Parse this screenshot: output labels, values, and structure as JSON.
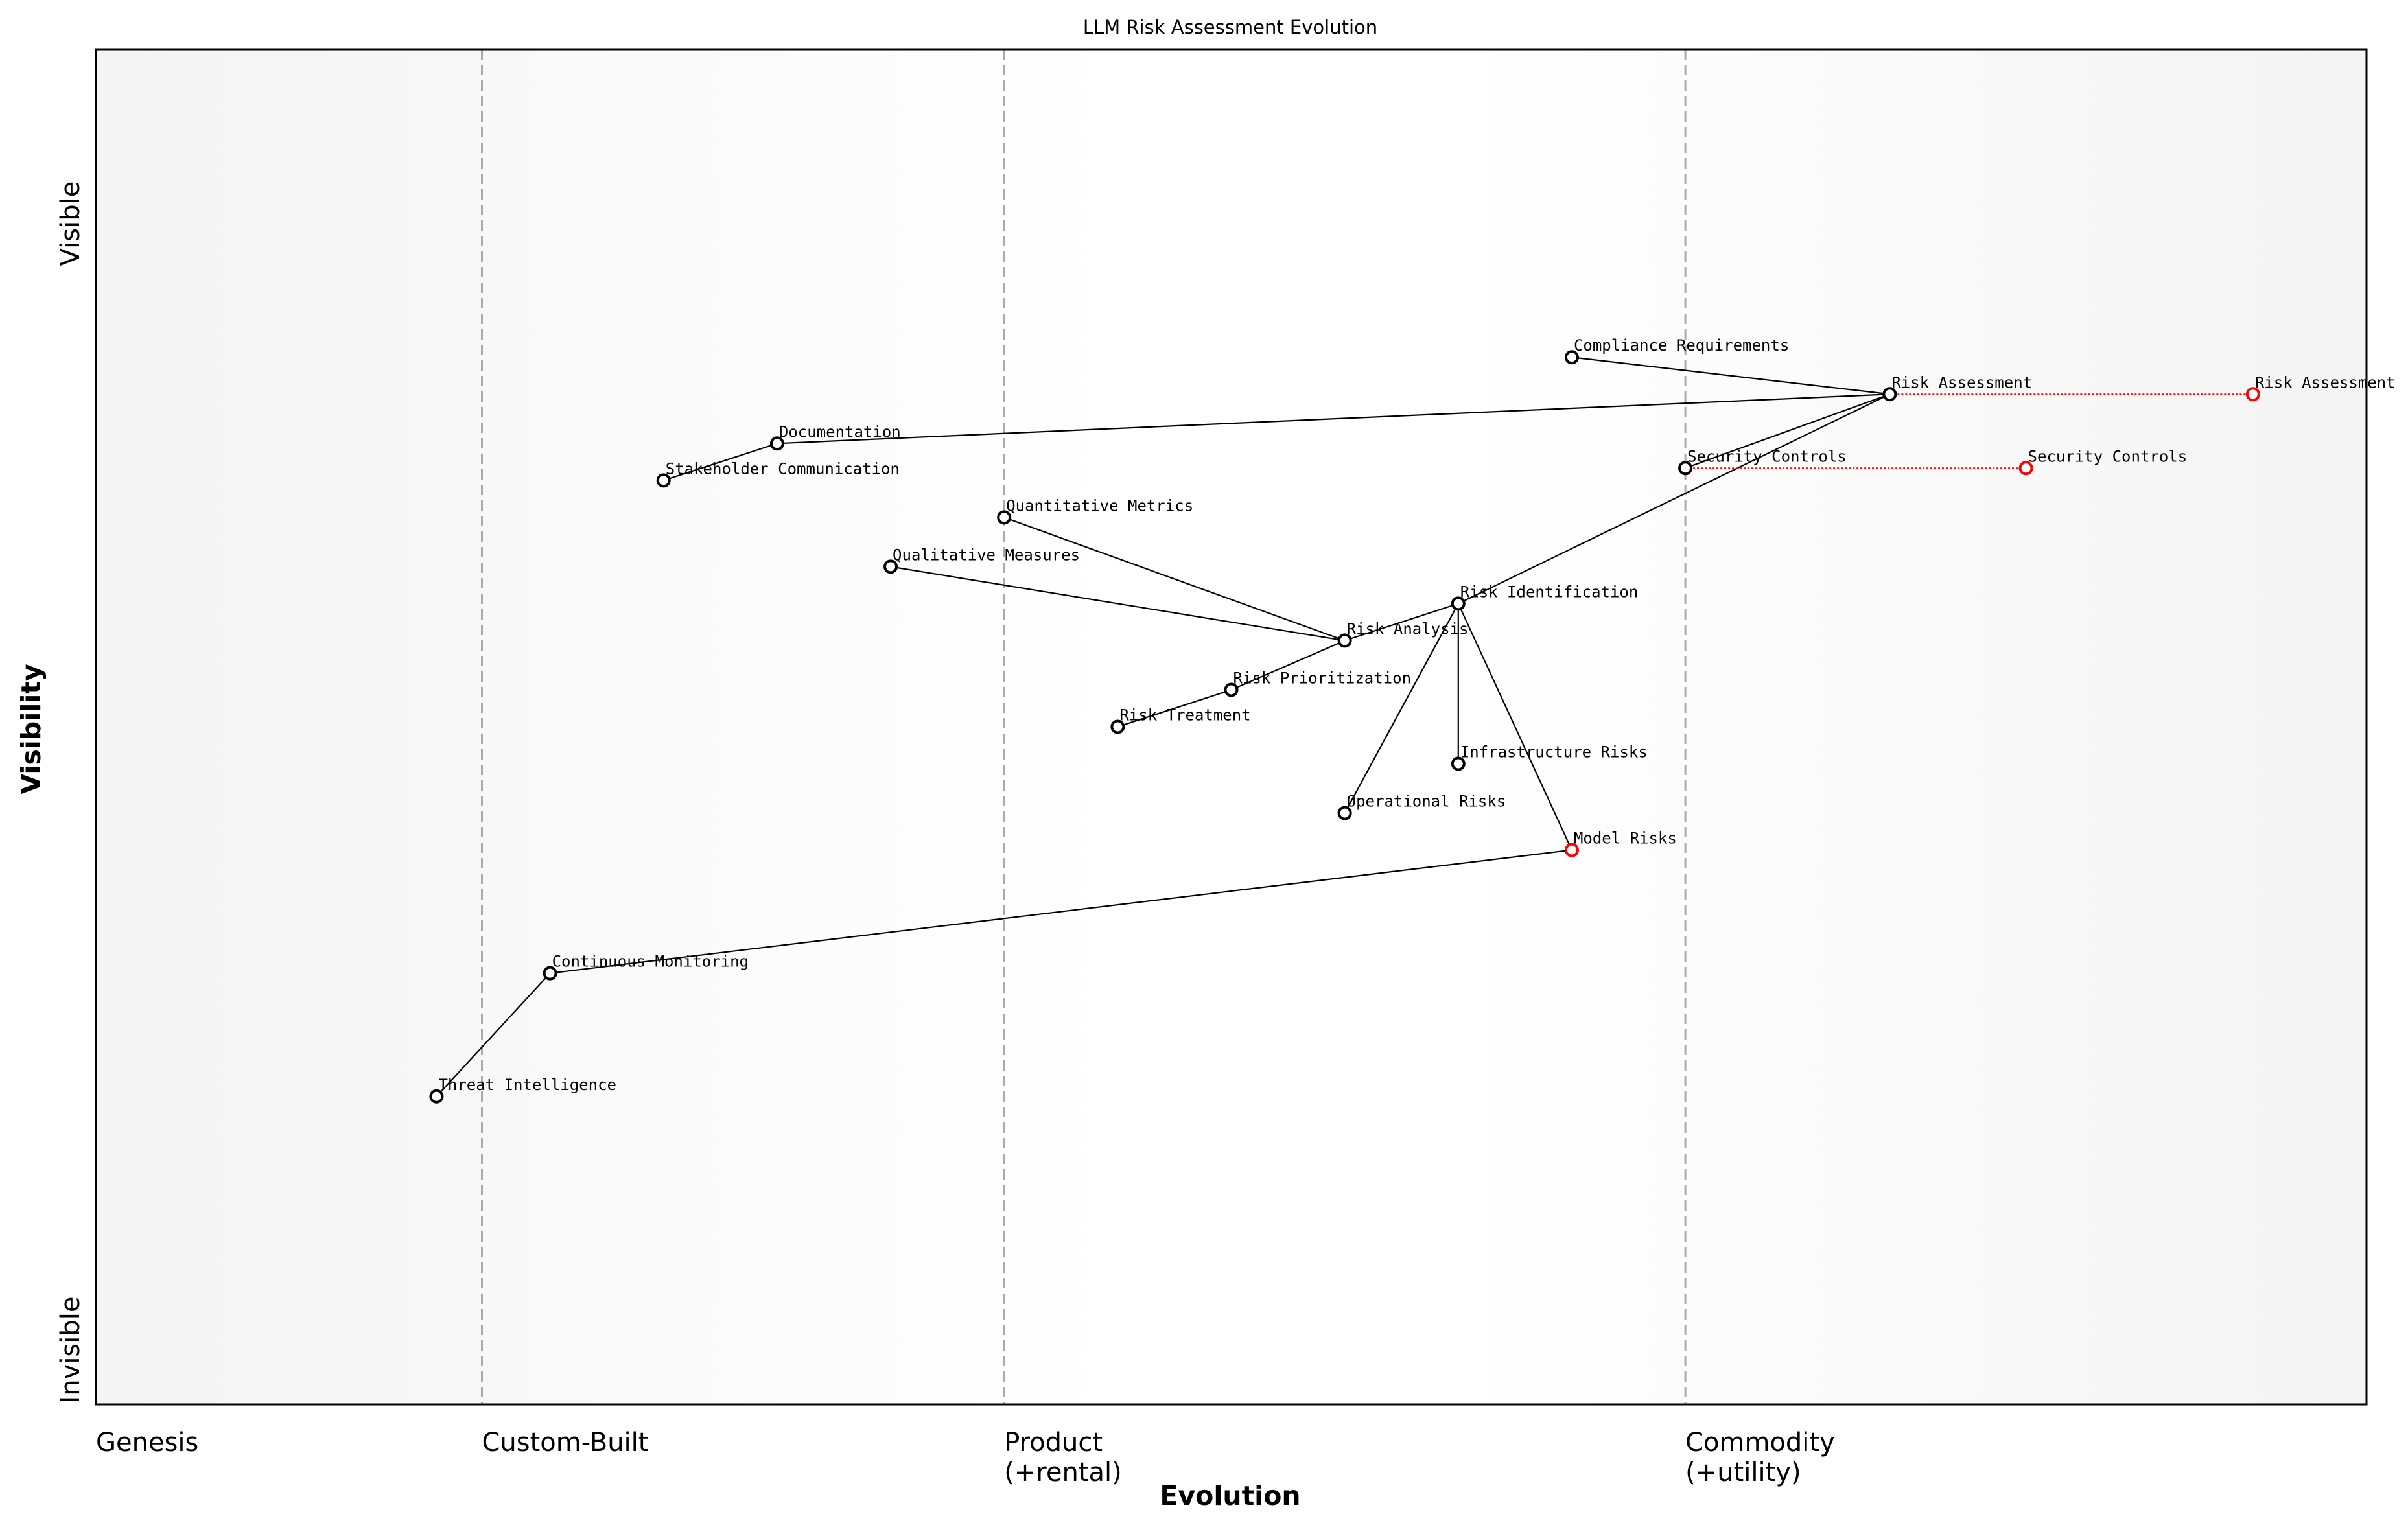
{
  "chart_data": {
    "type": "wardley-map",
    "title": "LLM Risk Assessment Evolution",
    "xlabel": "Evolution",
    "ylabel": "Visibility",
    "xlim": [
      0,
      1
    ],
    "ylim": [
      0,
      1.1
    ],
    "stages": [
      {
        "label": "Genesis",
        "x": 0
      },
      {
        "label": "Custom-Built",
        "x": 0.17
      },
      {
        "label": "Product\n(+rental)",
        "x": 0.4
      },
      {
        "label": "Commodity\n(+utility)",
        "x": 0.7
      }
    ],
    "y_labels": {
      "top": "Visible",
      "bottom": "Invisible"
    },
    "components": [
      {
        "name": "Compliance Requirements",
        "evolution": 0.65,
        "visibility": 0.85
      },
      {
        "name": "Risk Assessment",
        "evolution": 0.79,
        "visibility": 0.82
      },
      {
        "name": "Documentation",
        "evolution": 0.3,
        "visibility": 0.78
      },
      {
        "name": "Stakeholder Communication",
        "evolution": 0.25,
        "visibility": 0.75
      },
      {
        "name": "Security Controls",
        "evolution": 0.7,
        "visibility": 0.76
      },
      {
        "name": "Quantitative Metrics",
        "evolution": 0.4,
        "visibility": 0.72
      },
      {
        "name": "Qualitative Measures",
        "evolution": 0.35,
        "visibility": 0.68
      },
      {
        "name": "Risk Identification",
        "evolution": 0.6,
        "visibility": 0.65
      },
      {
        "name": "Risk Analysis",
        "evolution": 0.55,
        "visibility": 0.62
      },
      {
        "name": "Risk Prioritization",
        "evolution": 0.5,
        "visibility": 0.58
      },
      {
        "name": "Risk Treatment",
        "evolution": 0.45,
        "visibility": 0.55
      },
      {
        "name": "Infrastructure Risks",
        "evolution": 0.6,
        "visibility": 0.52
      },
      {
        "name": "Operational Risks",
        "evolution": 0.55,
        "visibility": 0.48
      },
      {
        "name": "Model Risks",
        "evolution": 0.65,
        "visibility": 0.45,
        "color": "#ff0000"
      },
      {
        "name": "Continuous Monitoring",
        "evolution": 0.2,
        "visibility": 0.35
      },
      {
        "name": "Threat Intelligence",
        "evolution": 0.15,
        "visibility": 0.25
      }
    ],
    "links": [
      [
        "Compliance Requirements",
        "Risk Assessment"
      ],
      [
        "Risk Assessment",
        "Documentation"
      ],
      [
        "Documentation",
        "Stakeholder Communication"
      ],
      [
        "Risk Assessment",
        "Security Controls"
      ],
      [
        "Risk Assessment",
        "Risk Identification"
      ],
      [
        "Risk Identification",
        "Risk Analysis"
      ],
      [
        "Risk Identification",
        "Infrastructure Risks"
      ],
      [
        "Risk Identification",
        "Operational Risks"
      ],
      [
        "Risk Identification",
        "Model Risks"
      ],
      [
        "Risk Analysis",
        "Quantitative Metrics"
      ],
      [
        "Risk Analysis",
        "Qualitative Measures"
      ],
      [
        "Risk Analysis",
        "Risk Prioritization"
      ],
      [
        "Risk Prioritization",
        "Risk Treatment"
      ],
      [
        "Model Risks",
        "Continuous Monitoring"
      ],
      [
        "Continuous Monitoring",
        "Threat Intelligence"
      ]
    ],
    "evolutions": [
      {
        "name": "Risk Assessment",
        "from": 0.79,
        "to": 0.95,
        "visibility": 0.82
      },
      {
        "name": "Security Controls",
        "from": 0.7,
        "to": 0.85,
        "visibility": 0.76
      }
    ],
    "colors": {
      "node": "#000000",
      "evolved": "#ff0000",
      "stage_line": "#aaaaaa",
      "background_edge": "#f5f5f5"
    }
  }
}
